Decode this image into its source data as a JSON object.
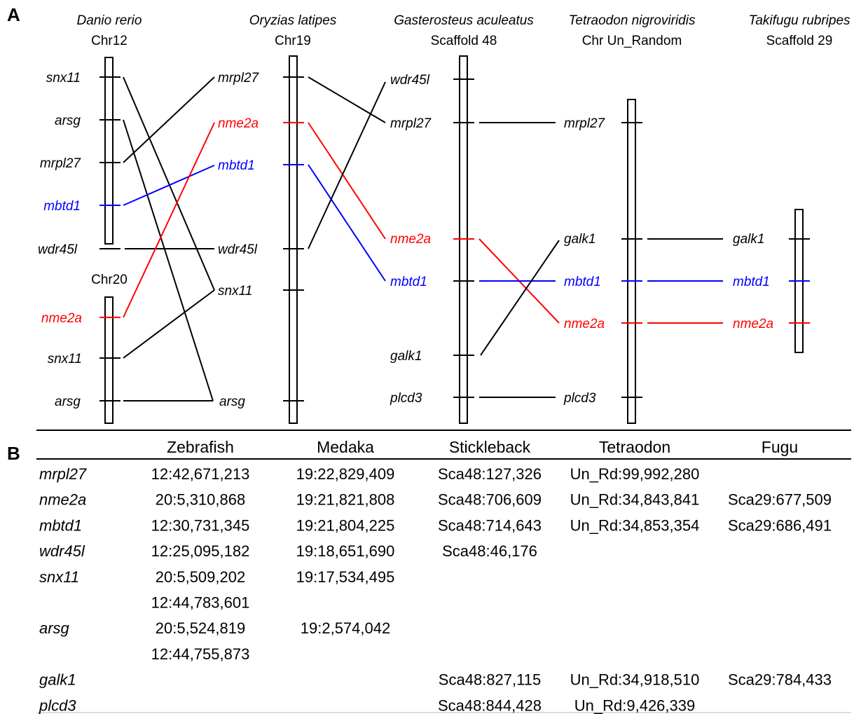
{
  "panel_a": {
    "letter": "A",
    "species": [
      {
        "id": "zebrafish",
        "name": "Danio rerio",
        "chr": "Chr12"
      },
      {
        "id": "medaka",
        "name": "Oryzias latipes",
        "chr": "Chr19"
      },
      {
        "id": "stickleback",
        "name": "Gasterosteus aculeatus",
        "chr": "Scaffold 48"
      },
      {
        "id": "tetraodon",
        "name": "Tetraodon nigroviridis",
        "chr": "Chr Un_Random"
      },
      {
        "id": "fugu",
        "name": "Takifugu rubripes",
        "chr": "Scaffold 29"
      }
    ],
    "extra_chromosome_label": "Chr20",
    "genes": {
      "zebrafish": [
        "snx11",
        "arsg",
        "mrpl27",
        "mbtd1",
        "wdr45l",
        "nme2a",
        "snx11",
        "arsg"
      ],
      "medaka": [
        "mrpl27",
        "nme2a",
        "mbtd1",
        "wdr45l",
        "snx11",
        "arsg"
      ],
      "stickleback": [
        "wdr45l",
        "mrpl27",
        "nme2a",
        "mbtd1",
        "galk1",
        "plcd3"
      ],
      "tetraodon": [
        "mrpl27",
        "galk1",
        "mbtd1",
        "nme2a",
        "plcd3"
      ],
      "fugu": [
        "galk1",
        "mbtd1",
        "nme2a"
      ]
    },
    "colors": {
      "nme2a": "#ff0000",
      "mbtd1": "#0000ff",
      "default": "#000000"
    }
  },
  "panel_b": {
    "letter": "B",
    "columns": [
      "Zebrafish",
      "Medaka",
      "Stickleback",
      "Tetraodon",
      "Fugu"
    ],
    "rows": [
      {
        "gene": "mrpl27",
        "cells": [
          "12:42,671,213",
          "19:22,829,409",
          "Sca48:127,326",
          "Un_Rd:99,992,280",
          ""
        ]
      },
      {
        "gene": "nme2a",
        "cells": [
          "20:5,310,868",
          "19:21,821,808",
          "Sca48:706,609",
          "Un_Rd:34,843,841",
          "Sca29:677,509"
        ]
      },
      {
        "gene": "mbtd1",
        "cells": [
          "12:30,731,345",
          "19:21,804,225",
          "Sca48:714,643",
          "Un_Rd:34,853,354",
          "Sca29:686,491"
        ]
      },
      {
        "gene": "wdr45l",
        "cells": [
          "12:25,095,182",
          "19:18,651,690",
          "Sca48:46,176",
          "",
          ""
        ]
      },
      {
        "gene": "snx11",
        "cells": [
          "20:5,509,202",
          "19:17,534,495",
          "",
          "",
          ""
        ]
      },
      {
        "gene": "",
        "cells": [
          "12:44,783,601",
          "",
          "",
          "",
          ""
        ]
      },
      {
        "gene": "arsg",
        "cells": [
          "20:5,524,819",
          "19:2,574,042",
          "",
          "",
          ""
        ]
      },
      {
        "gene": "",
        "cells": [
          "12:44,755,873",
          "",
          "",
          "",
          ""
        ]
      },
      {
        "gene": "galk1",
        "cells": [
          "",
          "",
          "Sca48:827,115",
          "Un_Rd:34,918,510",
          "Sca29:784,433"
        ]
      },
      {
        "gene": "plcd3",
        "cells": [
          "",
          "",
          "Sca48:844,428",
          "Un_Rd:9,426,339",
          ""
        ]
      }
    ]
  }
}
